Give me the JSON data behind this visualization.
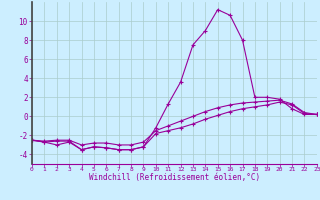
{
  "x": [
    0,
    1,
    2,
    3,
    4,
    5,
    6,
    7,
    8,
    9,
    10,
    11,
    12,
    13,
    14,
    15,
    16,
    17,
    18,
    19,
    20,
    21,
    22,
    23
  ],
  "line1": [
    -2.5,
    -2.7,
    -3.0,
    -2.7,
    -3.5,
    -3.2,
    -3.3,
    -3.5,
    -3.5,
    -3.2,
    -1.2,
    1.3,
    3.6,
    7.5,
    9.0,
    11.2,
    10.6,
    8.0,
    2.0,
    2.0,
    1.8,
    0.8,
    0.2,
    0.2
  ],
  "line2": [
    -2.5,
    -2.7,
    -2.6,
    -2.6,
    -3.5,
    -3.2,
    -3.3,
    -3.5,
    -3.5,
    -3.2,
    -1.8,
    -1.5,
    -1.2,
    -0.8,
    -0.3,
    0.1,
    0.5,
    0.8,
    1.0,
    1.2,
    1.5,
    1.2,
    0.3,
    0.2
  ],
  "line3": [
    -2.5,
    -2.6,
    -2.5,
    -2.5,
    -3.0,
    -2.8,
    -2.8,
    -3.0,
    -3.0,
    -2.7,
    -1.5,
    -1.0,
    -0.5,
    0.0,
    0.5,
    0.9,
    1.2,
    1.4,
    1.5,
    1.6,
    1.7,
    1.3,
    0.4,
    0.2
  ],
  "line_color": "#990099",
  "bg_color": "#cceeff",
  "grid_color": "#aacccc",
  "xlabel": "Windchill (Refroidissement éolien,°C)",
  "xlim": [
    0,
    23
  ],
  "ylim": [
    -5,
    12
  ],
  "yticks": [
    -4,
    -2,
    0,
    2,
    4,
    6,
    8,
    10
  ],
  "xticks": [
    0,
    1,
    2,
    3,
    4,
    5,
    6,
    7,
    8,
    9,
    10,
    11,
    12,
    13,
    14,
    15,
    16,
    17,
    18,
    19,
    20,
    21,
    22,
    23
  ],
  "xtick_labels": [
    "0",
    "1",
    "2",
    "3",
    "4",
    "5",
    "6",
    "7",
    "8",
    "9",
    "10",
    "11",
    "12",
    "13",
    "14",
    "15",
    "16",
    "17",
    "18",
    "19",
    "20",
    "21",
    "22",
    "23"
  ]
}
